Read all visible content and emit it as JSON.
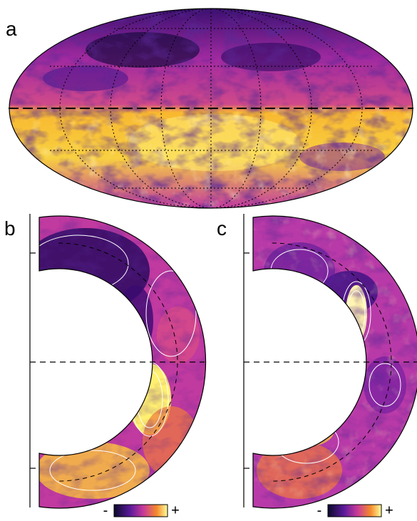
{
  "panels": [
    {
      "label": "a"
    },
    {
      "label": "b",
      "colorbar": {
        "min_label": "-",
        "max_label": "+"
      }
    },
    {
      "label": "c",
      "colorbar": {
        "min_label": "-",
        "max_label": "+"
      }
    }
  ]
}
